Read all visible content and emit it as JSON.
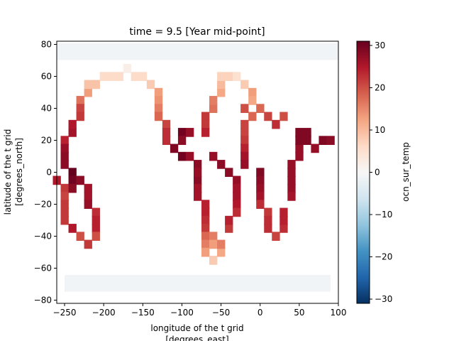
{
  "colors": {
    "cmap": [
      "#053061",
      "#2166ac",
      "#4393c3",
      "#92c5de",
      "#d1e5f0",
      "#f7f7f7",
      "#fddbc7",
      "#f4a582",
      "#d6604d",
      "#b2182b",
      "#67001f"
    ],
    "axis": "#000000",
    "background": "#ffffff"
  },
  "chart_data": {
    "type": "heatmap",
    "title": "time = 9.5 [Year mid-point]",
    "xlabel_line1": "longitude of the t grid",
    "xlabel_line2": "[degrees_east]",
    "ylabel_line1": "latitude of the t grid",
    "ylabel_line2": "[degrees_north]",
    "xlim": [
      -260,
      100
    ],
    "ylim": [
      -82,
      82
    ],
    "x_ticks": [
      -250,
      -200,
      -150,
      -100,
      -50,
      0,
      50,
      100
    ],
    "y_ticks": [
      -80,
      -60,
      -40,
      -20,
      0,
      20,
      40,
      60,
      80
    ],
    "colorbar": {
      "label": "ocn_sur_temp",
      "vmin": -31,
      "vmax": 31,
      "ticks": [
        -30,
        -20,
        -10,
        0,
        10,
        20,
        30
      ]
    },
    "cell_size": {
      "dlon": 10,
      "dlat": 5.5
    },
    "cells": [
      [
        -260,
        -5,
        25
      ],
      [
        -250,
        -10,
        22
      ],
      [
        -250,
        -15,
        21
      ],
      [
        -250,
        -20,
        22
      ],
      [
        -250,
        -25,
        22
      ],
      [
        -250,
        -30,
        22
      ],
      [
        -250,
        20,
        24
      ],
      [
        -250,
        15,
        27
      ],
      [
        -250,
        10,
        28
      ],
      [
        -250,
        5,
        28
      ],
      [
        -240,
        -35,
        25
      ],
      [
        -240,
        0,
        31
      ],
      [
        -240,
        -5,
        30
      ],
      [
        -240,
        -10,
        28
      ],
      [
        -240,
        25,
        26
      ],
      [
        -240,
        30,
        25
      ],
      [
        -230,
        -5,
        28
      ],
      [
        -230,
        -40,
        20
      ],
      [
        -230,
        45,
        17
      ],
      [
        -230,
        40,
        21
      ],
      [
        -230,
        35,
        22
      ],
      [
        -220,
        -10,
        26
      ],
      [
        -220,
        -15,
        26
      ],
      [
        -220,
        -20,
        27
      ],
      [
        -220,
        -45,
        22
      ],
      [
        -220,
        50,
        13
      ],
      [
        -220,
        55,
        9
      ],
      [
        -210,
        -25,
        23
      ],
      [
        -210,
        -30,
        24
      ],
      [
        -210,
        -35,
        24
      ],
      [
        -210,
        -40,
        20
      ],
      [
        -210,
        55,
        9
      ],
      [
        -200,
        60,
        6
      ],
      [
        -190,
        60,
        6
      ],
      [
        -180,
        60,
        6
      ],
      [
        -170,
        65,
        2
      ],
      [
        -160,
        60,
        6
      ],
      [
        -150,
        60,
        6
      ],
      [
        -140,
        55,
        8
      ],
      [
        -130,
        50,
        13
      ],
      [
        -130,
        45,
        14
      ],
      [
        -130,
        40,
        16
      ],
      [
        -130,
        35,
        18
      ],
      [
        -120,
        30,
        21
      ],
      [
        -120,
        25,
        23
      ],
      [
        -120,
        20,
        23
      ],
      [
        -110,
        15,
        29
      ],
      [
        -100,
        10,
        30
      ],
      [
        -100,
        25,
        30
      ],
      [
        -100,
        20,
        28
      ],
      [
        -90,
        25,
        27
      ],
      [
        -90,
        10,
        27
      ],
      [
        -80,
        5,
        28
      ],
      [
        -80,
        -5,
        28
      ],
      [
        -80,
        0,
        27
      ],
      [
        -80,
        -10,
        26
      ],
      [
        -80,
        -15,
        26
      ],
      [
        -70,
        -20,
        24
      ],
      [
        -70,
        -25,
        24
      ],
      [
        -70,
        -30,
        23
      ],
      [
        -70,
        -35,
        22
      ],
      [
        -70,
        -40,
        18
      ],
      [
        -70,
        -45,
        16
      ],
      [
        -70,
        -50,
        13
      ],
      [
        -70,
        35,
        22
      ],
      [
        -70,
        30,
        22
      ],
      [
        -70,
        25,
        24
      ],
      [
        -60,
        40,
        17
      ],
      [
        -60,
        10,
        27
      ],
      [
        -60,
        45,
        16
      ],
      [
        -60,
        -40,
        16
      ],
      [
        -60,
        -45,
        13
      ],
      [
        -60,
        -55,
        8
      ],
      [
        -50,
        50,
        12
      ],
      [
        -50,
        55,
        10
      ],
      [
        -50,
        60,
        7
      ],
      [
        -50,
        5,
        28
      ],
      [
        -50,
        -50,
        12
      ],
      [
        -50,
        -45,
        16
      ],
      [
        -40,
        0,
        28
      ],
      [
        -40,
        -35,
        22
      ],
      [
        -40,
        -30,
        24
      ],
      [
        -40,
        60,
        7
      ],
      [
        -30,
        -5,
        27
      ],
      [
        -30,
        -10,
        26
      ],
      [
        -30,
        -15,
        26
      ],
      [
        -30,
        -20,
        25
      ],
      [
        -30,
        -25,
        23
      ],
      [
        -30,
        60,
        5
      ],
      [
        -20,
        55,
        8
      ],
      [
        -20,
        30,
        21
      ],
      [
        -20,
        25,
        21
      ],
      [
        -20,
        20,
        22
      ],
      [
        -20,
        15,
        24
      ],
      [
        -20,
        10,
        26
      ],
      [
        -20,
        5,
        27
      ],
      [
        -20,
        40,
        20
      ],
      [
        -10,
        50,
        13
      ],
      [
        -10,
        45,
        12
      ],
      [
        -10,
        35,
        18
      ],
      [
        0,
        0,
        29
      ],
      [
        0,
        -5,
        28
      ],
      [
        0,
        -10,
        27
      ],
      [
        0,
        -15,
        26
      ],
      [
        0,
        -20,
        23
      ],
      [
        0,
        40,
        18
      ],
      [
        10,
        -25,
        22
      ],
      [
        10,
        -30,
        23
      ],
      [
        10,
        -35,
        23
      ],
      [
        10,
        35,
        21
      ],
      [
        20,
        -40,
        21
      ],
      [
        20,
        30,
        23
      ],
      [
        30,
        -35,
        23
      ],
      [
        30,
        -30,
        24
      ],
      [
        30,
        -25,
        24
      ],
      [
        30,
        35,
        20
      ],
      [
        40,
        -5,
        27
      ],
      [
        40,
        0,
        27
      ],
      [
        40,
        5,
        27
      ],
      [
        40,
        -10,
        27
      ],
      [
        40,
        -15,
        26
      ],
      [
        50,
        10,
        27
      ],
      [
        50,
        15,
        27
      ],
      [
        50,
        20,
        29
      ],
      [
        50,
        25,
        29
      ],
      [
        60,
        20,
        29
      ],
      [
        60,
        25,
        29
      ],
      [
        70,
        15,
        27
      ],
      [
        80,
        20,
        29
      ],
      [
        90,
        20,
        28
      ]
    ],
    "polar_bands": [
      {
        "y": 78,
        "val": -1
      },
      {
        "y": 73,
        "val": -1
      },
      {
        "y": -67,
        "val": -1
      },
      {
        "y": -72,
        "val": -1
      }
    ]
  }
}
